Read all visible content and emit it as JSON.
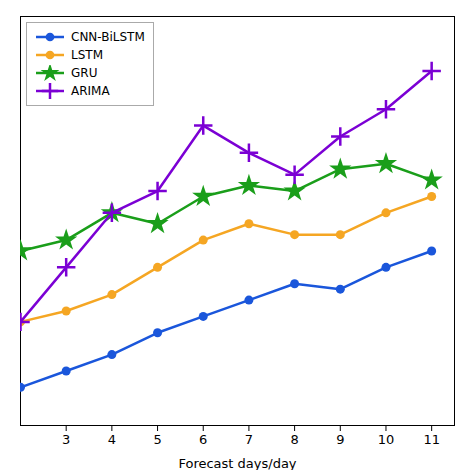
{
  "chart_data": {
    "type": "line",
    "xlabel": "Forecast days/day",
    "x": [
      2,
      3,
      4,
      5,
      6,
      7,
      8,
      9,
      10,
      11
    ],
    "series": [
      {
        "name": "CNN-BiLSTM",
        "color": "#1a56db",
        "marker": "circle",
        "values": [
          1.0,
          1.3,
          1.6,
          2.0,
          2.3,
          2.6,
          2.9,
          2.8,
          3.2,
          3.5
        ]
      },
      {
        "name": "LSTM",
        "color": "#f5a623",
        "marker": "circle",
        "values": [
          2.2,
          2.4,
          2.7,
          3.2,
          3.7,
          4.0,
          3.8,
          3.8,
          4.2,
          4.5
        ]
      },
      {
        "name": "GRU",
        "color": "#1a9e1a",
        "marker": "star",
        "values": [
          3.5,
          3.7,
          4.2,
          4.0,
          4.5,
          4.7,
          4.6,
          5.0,
          5.1,
          4.8
        ]
      },
      {
        "name": "ARIMA",
        "color": "#7b00d4",
        "marker": "plus",
        "values": [
          2.2,
          3.2,
          4.2,
          4.6,
          5.8,
          5.3,
          4.9,
          5.6,
          6.1,
          6.8
        ]
      }
    ],
    "xlim": [
      2.0,
      11.5
    ],
    "xticks": [
      3,
      4,
      5,
      6,
      7,
      8,
      9,
      10,
      11
    ],
    "ylim": [
      0.3,
      7.8
    ],
    "tick_labels": "x",
    "grid": false,
    "legend": "upper left"
  }
}
